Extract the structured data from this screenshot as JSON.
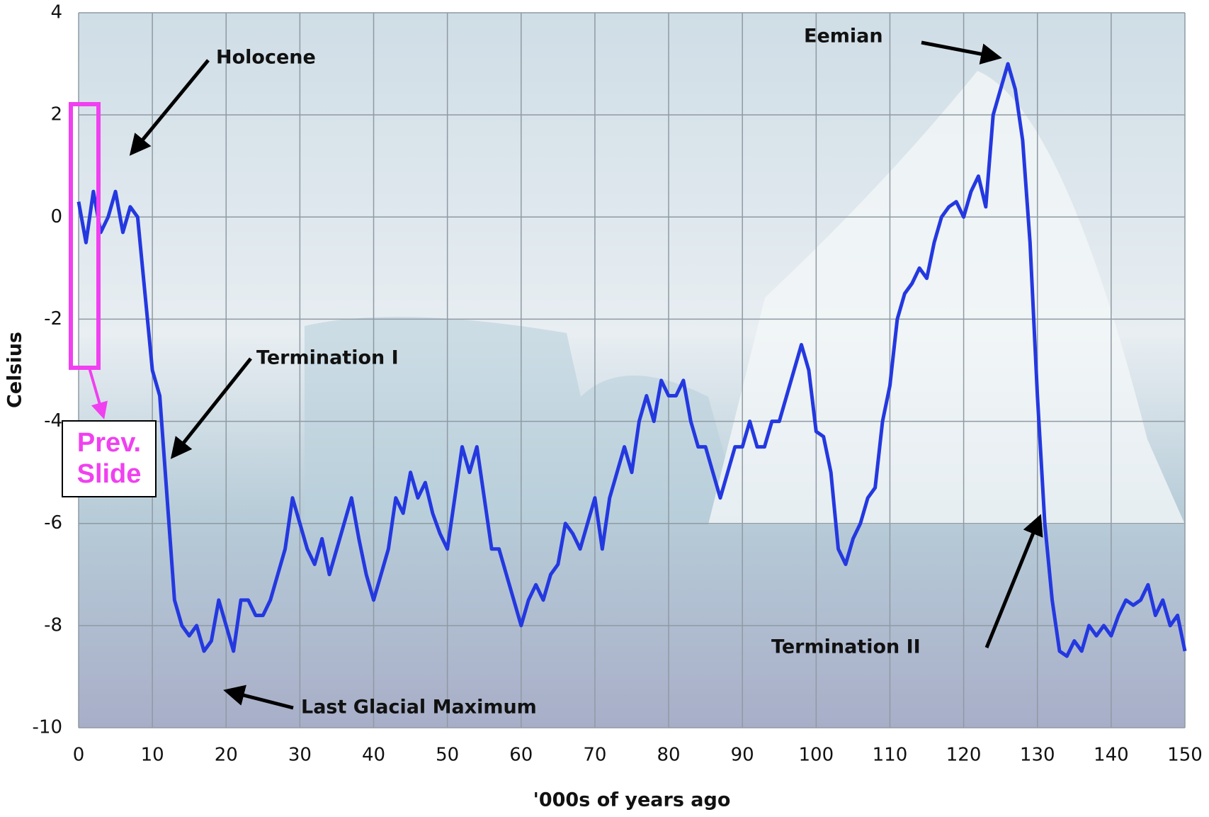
{
  "chart_data": {
    "type": "line",
    "xlabel": "'000s of years ago",
    "ylabel": "Celsius",
    "x": [
      0,
      1,
      2,
      3,
      4,
      5,
      6,
      7,
      8,
      9,
      10,
      11,
      12,
      13,
      14,
      15,
      16,
      17,
      18,
      19,
      20,
      21,
      22,
      23,
      24,
      25,
      26,
      27,
      28,
      29,
      30,
      31,
      32,
      33,
      34,
      35,
      36,
      37,
      38,
      39,
      40,
      41,
      42,
      43,
      44,
      45,
      46,
      47,
      48,
      49,
      50,
      51,
      52,
      53,
      54,
      55,
      56,
      57,
      58,
      59,
      60,
      61,
      62,
      63,
      64,
      65,
      66,
      67,
      68,
      69,
      70,
      71,
      72,
      73,
      74,
      75,
      76,
      77,
      78,
      79,
      80,
      81,
      82,
      83,
      84,
      85,
      86,
      87,
      88,
      89,
      90,
      91,
      92,
      93,
      94,
      95,
      96,
      97,
      98,
      99,
      100,
      101,
      102,
      103,
      104,
      105,
      106,
      107,
      108,
      109,
      110,
      111,
      112,
      113,
      114,
      115,
      116,
      117,
      118,
      119,
      120,
      121,
      122,
      123,
      124,
      125,
      126,
      127,
      128,
      129,
      130,
      131,
      132,
      133,
      134,
      135,
      136,
      137,
      138,
      139,
      140,
      141,
      142,
      143,
      144,
      145,
      146,
      147,
      148,
      149,
      150
    ],
    "series": [
      {
        "color": "#2438e0",
        "values": [
          0.3,
          -0.5,
          0.5,
          -0.3,
          0,
          0.5,
          -0.3,
          0.2,
          0,
          -1.5,
          -3,
          -3.5,
          -5.5,
          -7.5,
          -8,
          -8.2,
          -8,
          -8.5,
          -8.3,
          -7.5,
          -8,
          -8.5,
          -7.5,
          -7.5,
          -7.8,
          -7.8,
          -7.5,
          -7,
          -6.5,
          -5.5,
          -6,
          -6.5,
          -6.8,
          -6.3,
          -7,
          -6.5,
          -6,
          -5.5,
          -6.3,
          -7,
          -7.5,
          -7,
          -6.5,
          -5.5,
          -5.8,
          -5,
          -5.5,
          -5.2,
          -5.8,
          -6.2,
          -6.5,
          -5.5,
          -4.5,
          -5,
          -4.5,
          -5.5,
          -6.5,
          -6.5,
          -7,
          -7.5,
          -8,
          -7.5,
          -7.2,
          -7.5,
          -7,
          -6.8,
          -6,
          -6.2,
          -6.5,
          -6,
          -5.5,
          -6.5,
          -5.5,
          -5,
          -4.5,
          -5,
          -4,
          -3.5,
          -4,
          -3.2,
          -3.5,
          -3.5,
          -3.2,
          -4,
          -4.5,
          -4.5,
          -5,
          -5.5,
          -5,
          -4.5,
          -4.5,
          -4,
          -4.5,
          -4.5,
          -4,
          -4,
          -3.5,
          -3,
          -2.5,
          -3,
          -4.2,
          -4.3,
          -5,
          -6.5,
          -6.8,
          -6.3,
          -6,
          -5.5,
          -5.3,
          -4,
          -3.3,
          -2,
          -1.5,
          -1.3,
          -1,
          -1.2,
          -0.5,
          0,
          0.2,
          0.3,
          0,
          0.5,
          0.8,
          0.2,
          2,
          2.5,
          3,
          2.5,
          1.5,
          -0.5,
          -3.5,
          -6,
          -7.5,
          -8.5,
          -8.6,
          -8.3,
          -8.5,
          -8,
          -8.2,
          -8,
          -8.2,
          -7.8,
          -7.5,
          -7.6,
          -7.5,
          -7.2,
          -7.8,
          -7.5,
          -8,
          -7.8,
          -8.5
        ]
      }
    ],
    "xlim": [
      0,
      150
    ],
    "xticks": [
      0,
      10,
      20,
      30,
      40,
      50,
      60,
      70,
      80,
      90,
      100,
      110,
      120,
      130,
      140,
      150
    ],
    "ylim": [
      -10,
      4
    ],
    "yticks": [
      -10,
      -8,
      -6,
      -4,
      -2,
      0,
      2,
      4
    ],
    "grid": true,
    "annotations": [
      "Holocene",
      "Eemian",
      "Termination I",
      "Last Glacial Maximum",
      "Termination II",
      "Prev.\nSlide"
    ]
  }
}
